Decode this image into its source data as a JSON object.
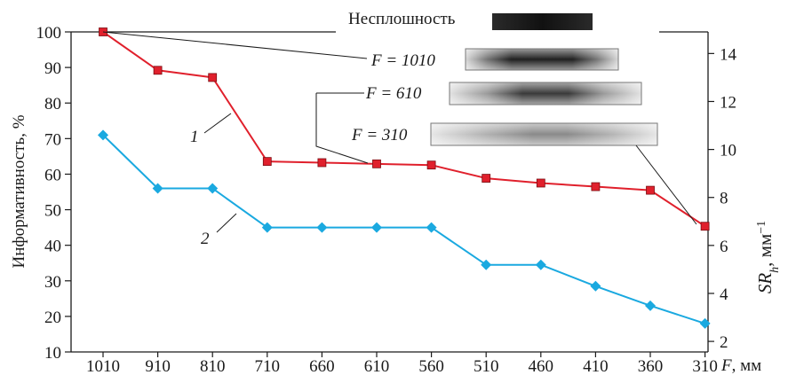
{
  "chart_data": {
    "type": "line",
    "categories": [
      "1010",
      "910",
      "810",
      "710",
      "660",
      "610",
      "560",
      "510",
      "460",
      "410",
      "360",
      "310"
    ],
    "xlabel": "F, мм",
    "ylabel_left": "Информативность, %",
    "ylabel_right": "SR_h, мм^-1",
    "ylim_left": [
      10,
      100
    ],
    "yticks_left": [
      10,
      20,
      30,
      40,
      50,
      60,
      70,
      80,
      90,
      100
    ],
    "ylim_right": [
      1.56,
      14.9
    ],
    "yticks_right": [
      2,
      4,
      6,
      8,
      10,
      12,
      14
    ],
    "grid": false,
    "series": [
      {
        "name": "1",
        "axis": "right",
        "color": "#e0202c",
        "marker": "square",
        "values": [
          14.9,
          13.3,
          13.0,
          9.5,
          9.45,
          9.4,
          9.35,
          8.8,
          8.6,
          8.45,
          8.3,
          6.8
        ]
      },
      {
        "name": "2",
        "axis": "left",
        "color": "#1aa9e0",
        "marker": "diamond",
        "values": [
          71,
          56,
          56,
          45,
          45,
          45,
          45,
          34.5,
          34.5,
          28.5,
          23,
          18
        ]
      }
    ],
    "annotations": [
      {
        "label": "Несплошность",
        "kind": "defect"
      },
      {
        "label": "F = 1010",
        "kind": "strip",
        "focus": "1010"
      },
      {
        "label": "F = 610",
        "kind": "strip",
        "focus": "610"
      },
      {
        "label": "F = 310",
        "kind": "strip",
        "focus": "310"
      }
    ]
  }
}
